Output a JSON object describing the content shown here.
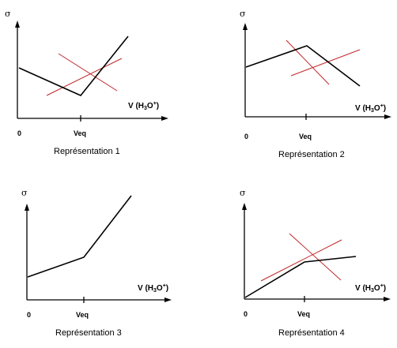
{
  "panels": [
    {
      "caption": "Représentation 1",
      "sigma": "σ",
      "origin_label": "0",
      "veq_label": "Veq",
      "xlabel": {
        "prefix": "V (H",
        "sub": "3",
        "mid": "O",
        "sup": "+",
        "suffix": ")"
      },
      "has_tangents": true
    },
    {
      "caption": "Représentation 2",
      "sigma": "σ",
      "origin_label": "0",
      "veq_label": "Veq",
      "xlabel": {
        "prefix": "V (H",
        "sub": "3",
        "mid": "O",
        "sup": "+",
        "suffix": ")"
      },
      "has_tangents": true
    },
    {
      "caption": "Représentation 3",
      "sigma": "σ",
      "origin_label": "0",
      "veq_label": "Veq",
      "xlabel": {
        "prefix": "V (H",
        "sub": "3",
        "mid": "O",
        "sup": "+",
        "suffix": ")"
      },
      "has_tangents": false
    },
    {
      "caption": "Représentation 4",
      "sigma": "σ",
      "origin_label": "0",
      "veq_label": "Veq",
      "xlabel": {
        "prefix": "V (H",
        "sub": "3",
        "mid": "O",
        "sup": "+",
        "suffix": ")"
      },
      "has_tangents": true
    }
  ],
  "colors": {
    "axis": "#000000",
    "curve": "#000000",
    "tangent": "#c0282a"
  }
}
